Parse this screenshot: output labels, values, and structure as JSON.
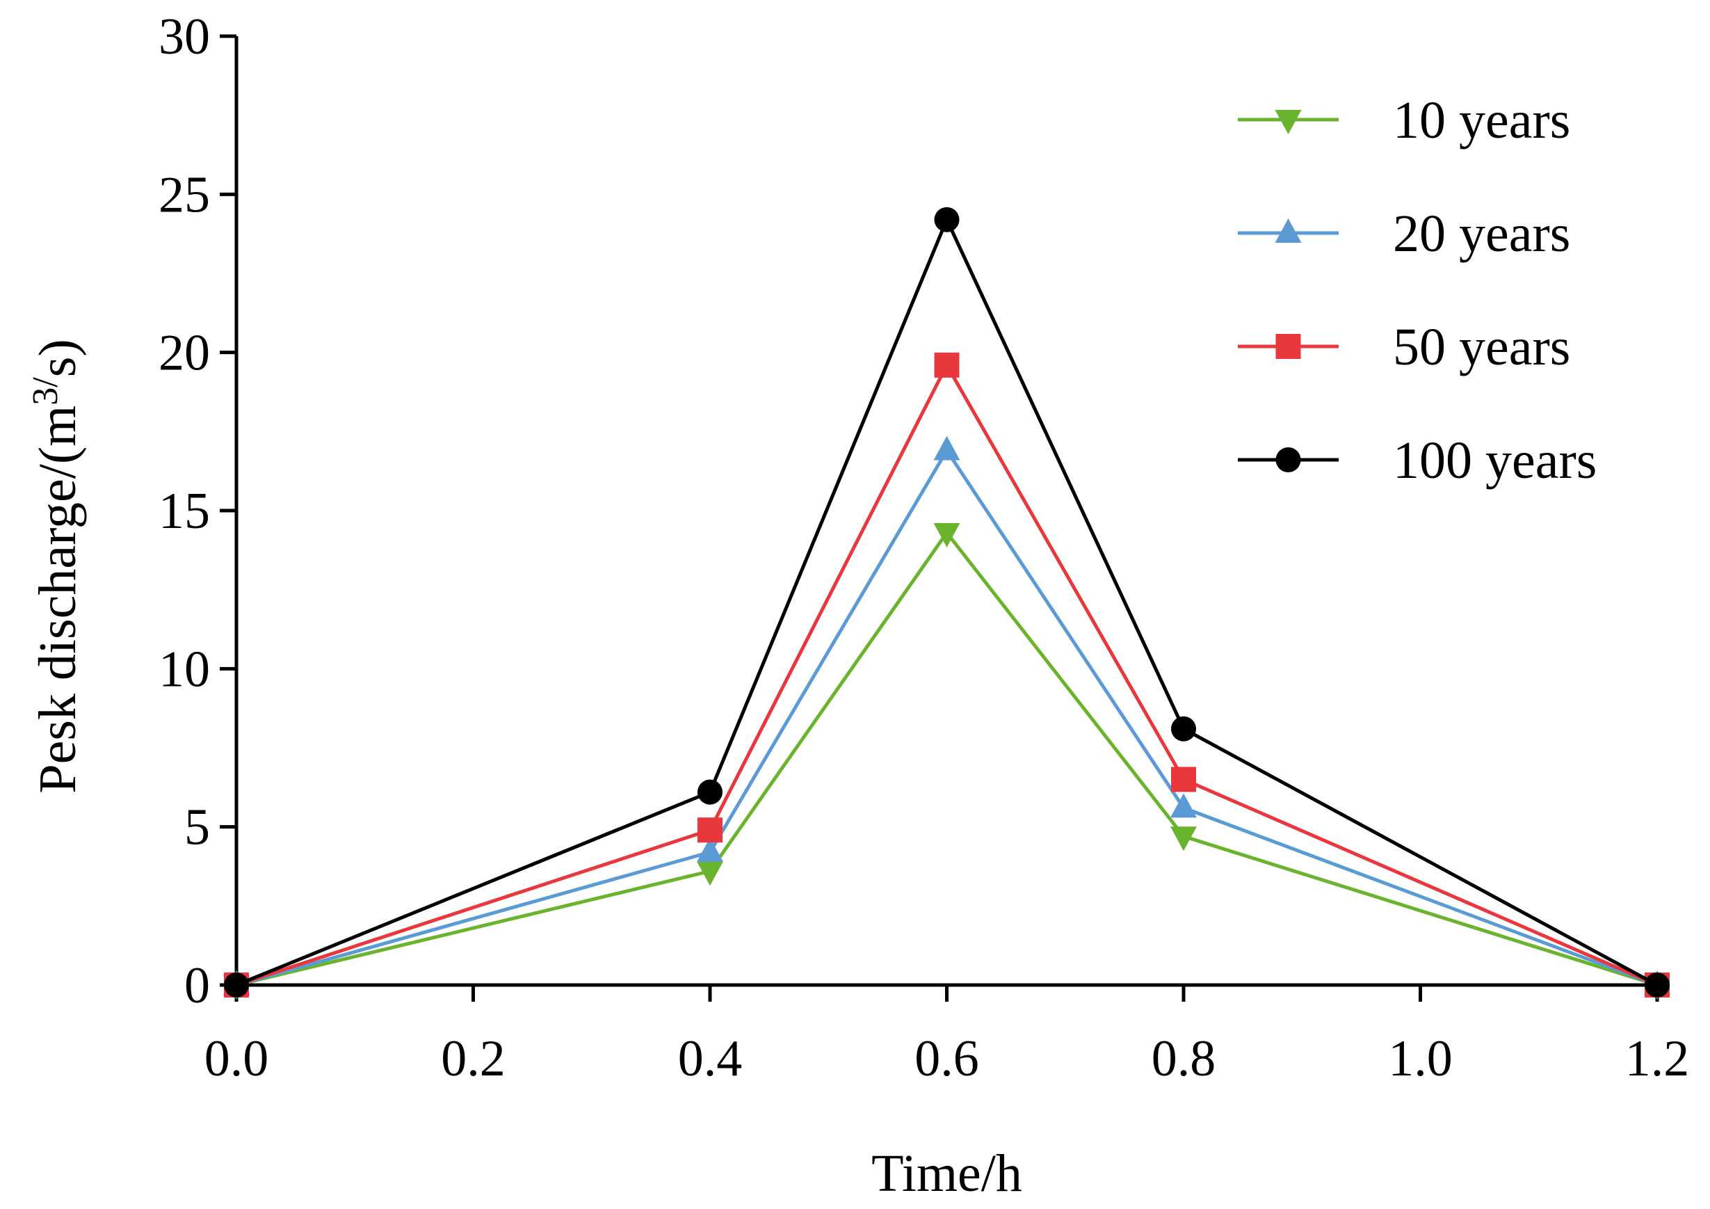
{
  "chart_data": {
    "type": "line",
    "x": [
      0.0,
      0.4,
      0.6,
      0.8,
      1.2
    ],
    "xlim": [
      0.0,
      1.2
    ],
    "ylim": [
      0,
      30
    ],
    "xticks": [
      "0.0",
      "0.2",
      "0.4",
      "0.6",
      "0.8",
      "1.0",
      "1.2"
    ],
    "xtick_values": [
      0.0,
      0.2,
      0.4,
      0.6,
      0.8,
      1.0,
      1.2
    ],
    "yticks": [
      "0",
      "5",
      "10",
      "15",
      "20",
      "25",
      "30"
    ],
    "ytick_values": [
      0,
      5,
      10,
      15,
      20,
      25,
      30
    ],
    "xlabel": "Time/h",
    "ylabel": {
      "main": "Pesk discharge/(m",
      "sup": "3/",
      "tail": "s)"
    },
    "grid": false,
    "legend_position": "top-right",
    "series": [
      {
        "name": "10 years",
        "marker": "triangle-down",
        "color": "#6ab42d",
        "values": [
          0,
          3.6,
          14.3,
          4.7,
          0
        ]
      },
      {
        "name": "20 years",
        "marker": "triangle-up",
        "color": "#5b9bd5",
        "values": [
          0,
          4.2,
          16.9,
          5.6,
          0
        ]
      },
      {
        "name": "50 years",
        "marker": "square",
        "color": "#e8383d",
        "values": [
          0,
          4.9,
          19.6,
          6.5,
          0
        ]
      },
      {
        "name": "100 years",
        "marker": "circle",
        "color": "#000000",
        "values": [
          0,
          6.1,
          24.2,
          8.1,
          0
        ]
      }
    ]
  }
}
